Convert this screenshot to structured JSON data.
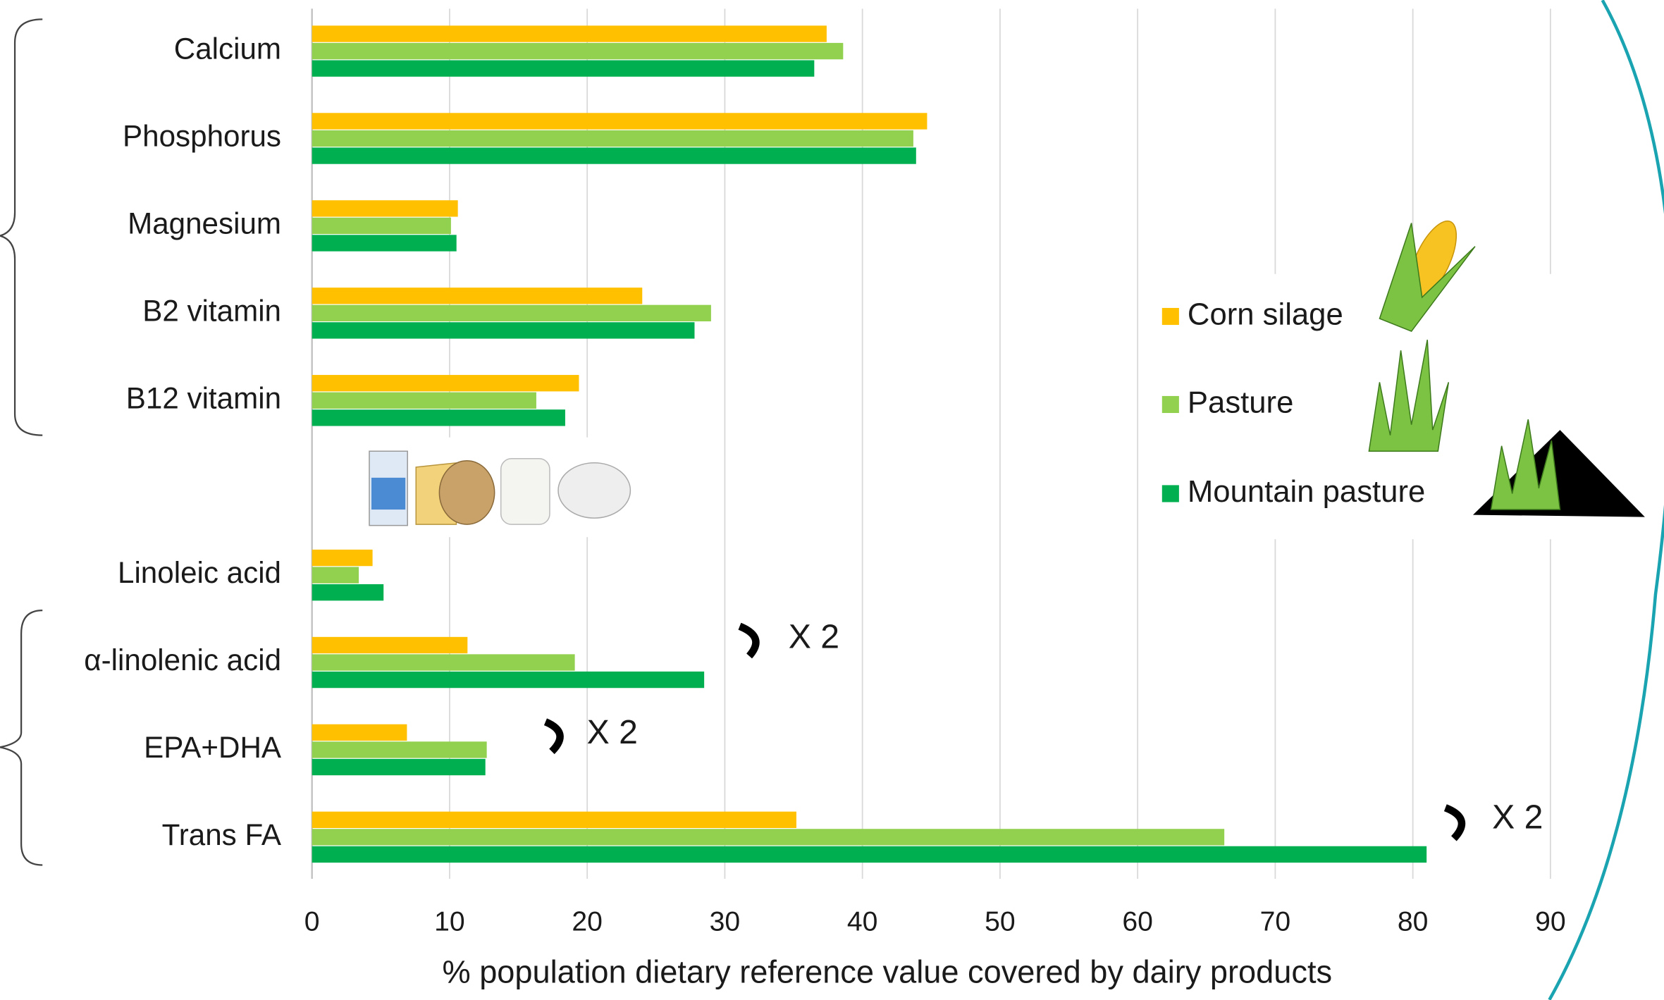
{
  "chart_data": {
    "type": "bar",
    "orientation": "horizontal",
    "categories": [
      "Calcium",
      "Phosphorus",
      "Magnesium",
      "B2 vitamin",
      "B12 vitamin",
      "Linoleic acid",
      "α-linolenic acid",
      "EPA+DHA",
      "Trans FA"
    ],
    "series": [
      {
        "name": "Corn silage",
        "color": "#ffc000",
        "values": [
          37.4,
          44.7,
          10.6,
          24.0,
          19.4,
          4.4,
          11.3,
          6.9,
          35.2
        ]
      },
      {
        "name": "Pasture",
        "color": "#92d050",
        "values": [
          38.6,
          43.7,
          10.1,
          29.0,
          16.3,
          3.4,
          19.1,
          12.7,
          66.3
        ]
      },
      {
        "name": "Mountain pasture",
        "color": "#00b050",
        "values": [
          36.5,
          43.9,
          10.5,
          27.8,
          18.4,
          5.2,
          28.5,
          12.6,
          81.0
        ]
      }
    ],
    "xlim": [
      0,
      90
    ],
    "xticks": [
      0,
      10,
      20,
      30,
      40,
      50,
      60,
      70,
      80,
      90
    ],
    "xlabel": "% population dietary reference value covered by dairy products",
    "annotations": [
      "X 2",
      "X 2",
      "X 2"
    ],
    "grid": true,
    "legend": "right"
  }
}
